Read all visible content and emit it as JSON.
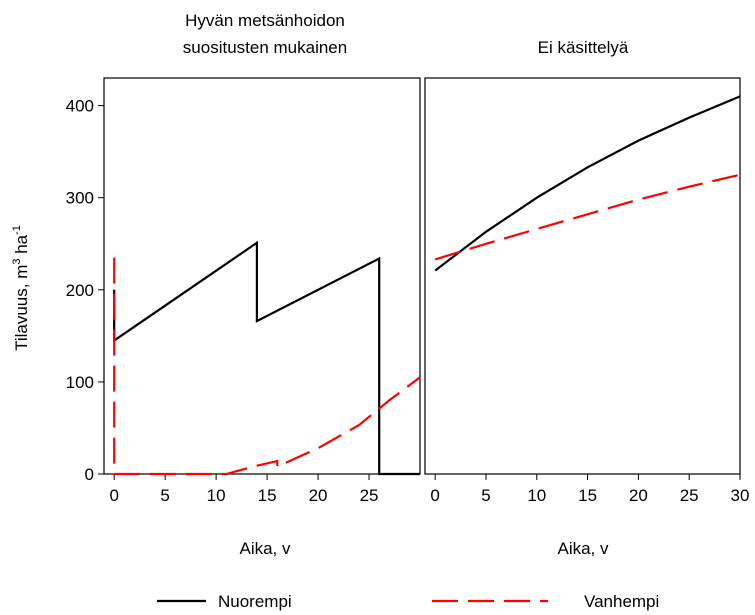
{
  "colors": {
    "nuorempi": "#000000",
    "vanhempi": "#ff0000"
  },
  "legend": {
    "position": "bottom",
    "items": [
      "Nuorempi",
      "Vanhempi"
    ]
  },
  "chart_data": [
    {
      "type": "line",
      "title_lines": [
        "Hyvän metsänhoidon",
        "suositusten mukainen"
      ],
      "xlabel": "Aika, v",
      "ylabel": "Tilavuus, m3 ha-1",
      "ylabel_parts": [
        "Tilavuus, m",
        "3",
        " ha",
        "-1"
      ],
      "xlim": [
        -1,
        30
      ],
      "ylim": [
        0,
        430
      ],
      "xticks": [
        0,
        5,
        10,
        15,
        20,
        25
      ],
      "yticks": [
        0,
        100,
        200,
        300,
        400
      ],
      "grid": false,
      "series": [
        {
          "name": "Nuorempi",
          "style": "solid",
          "x": [
            0,
            0,
            14,
            14,
            26,
            26,
            30
          ],
          "y": [
            200,
            145,
            251,
            166,
            234,
            0,
            0
          ]
        },
        {
          "name": "Vanhempi",
          "style": "dashed",
          "x": [
            0,
            0,
            11,
            14,
            16,
            16,
            20,
            24,
            27,
            30
          ],
          "y": [
            235,
            0,
            0,
            9,
            14,
            8,
            28,
            53,
            80,
            105
          ]
        }
      ]
    },
    {
      "type": "line",
      "title_lines": [
        "Ei käsittelyä"
      ],
      "xlabel": "Aika, v",
      "ylabel": "",
      "xlim": [
        -1,
        30
      ],
      "ylim": [
        0,
        430
      ],
      "xticks": [
        0,
        5,
        10,
        15,
        20,
        25,
        30
      ],
      "yticks": [
        0,
        100,
        200,
        300,
        400
      ],
      "grid": false,
      "series": [
        {
          "name": "Nuorempi",
          "style": "solid",
          "x": [
            0,
            5,
            10,
            15,
            20,
            25,
            30
          ],
          "y": [
            221,
            263,
            300,
            333,
            362,
            387,
            410
          ]
        },
        {
          "name": "Vanhempi",
          "style": "dashed",
          "x": [
            0,
            5,
            10,
            15,
            20,
            25,
            30
          ],
          "y": [
            233,
            250,
            266,
            282,
            298,
            312,
            325
          ]
        }
      ]
    }
  ]
}
